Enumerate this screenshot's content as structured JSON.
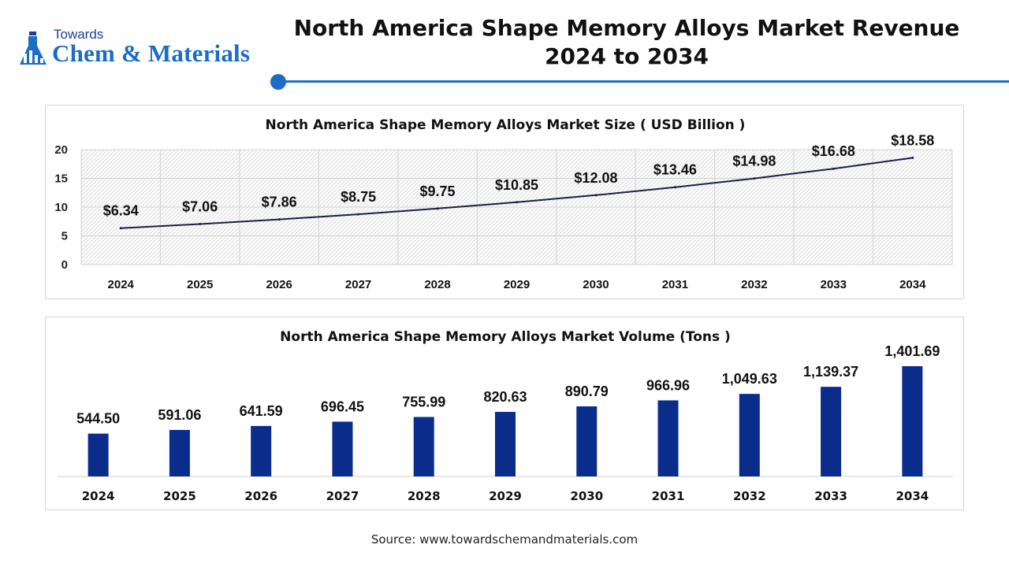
{
  "brand": {
    "line1": "Towards",
    "line2": "Chem & Materials",
    "accent": "#1c6dc6",
    "dark": "#1c3f94"
  },
  "title": {
    "line1": "North America Shape Memory Alloys Market Revenue",
    "line2": "2024 to 2034"
  },
  "source": "Source: www.towardschemandmaterials.com",
  "chart_data": [
    {
      "type": "line",
      "title": "North America Shape Memory Alloys Market Size ( USD Billion )",
      "x": [
        "2024",
        "2025",
        "2026",
        "2027",
        "2028",
        "2029",
        "2030",
        "2031",
        "2032",
        "2033",
        "2034"
      ],
      "values": [
        6.34,
        7.06,
        7.86,
        8.75,
        9.75,
        10.85,
        12.08,
        13.46,
        14.98,
        16.68,
        18.58
      ],
      "labels": [
        "$6.34",
        "$7.06",
        "$7.86",
        "$8.75",
        "$9.75",
        "$10.85",
        "$12.08",
        "$13.46",
        "$14.98",
        "$16.68",
        "$18.58"
      ],
      "ylim": [
        0,
        20
      ],
      "yticks": [
        "0",
        "5",
        "10",
        "15",
        "20"
      ],
      "grid": true,
      "line_color": "#1b1f4a"
    },
    {
      "type": "bar",
      "title": "North America Shape Memory Alloys Market Volume (Tons )",
      "categories": [
        "2024",
        "2025",
        "2026",
        "2027",
        "2028",
        "2029",
        "2030",
        "2031",
        "2032",
        "2033",
        "2034"
      ],
      "values": [
        544.5,
        591.06,
        641.59,
        696.45,
        755.99,
        820.63,
        890.79,
        966.96,
        1049.63,
        1139.37,
        1401.69
      ],
      "labels": [
        "544.50",
        "591.06",
        "641.59",
        "696.45",
        "755.99",
        "820.63",
        "890.79",
        "966.96",
        "1,049.63",
        "1,139.37",
        "1,401.69"
      ],
      "ylim": [
        0,
        1401.69
      ],
      "bar_color": "#0a2d8c"
    }
  ]
}
